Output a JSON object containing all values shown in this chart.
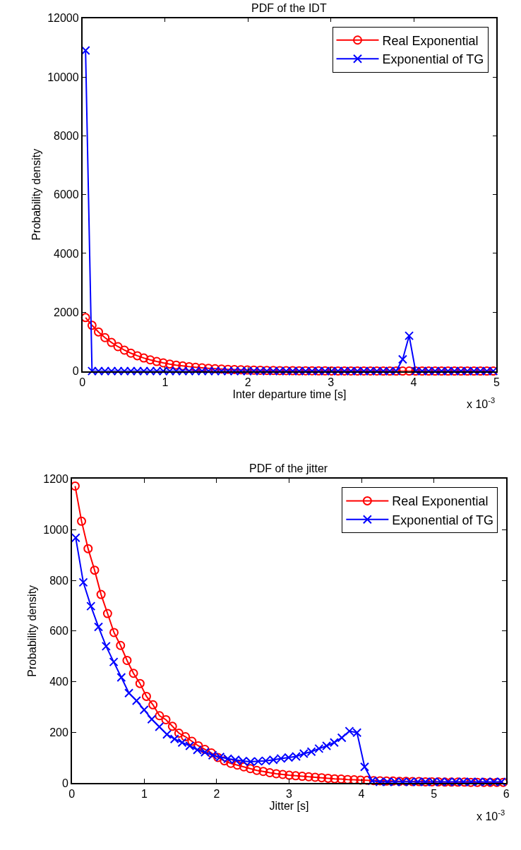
{
  "chart_data": [
    {
      "type": "line",
      "title": "PDF of the IDT",
      "xlabel": "Inter departure time [s]",
      "ylabel": "Probability density",
      "annotations": [
        "x 10$^{-3}$"
      ],
      "x": [
        0.039,
        0.117,
        0.195,
        0.273,
        0.352,
        0.43,
        0.508,
        0.586,
        0.664,
        0.742,
        0.82,
        0.898,
        0.977,
        1.055,
        1.133,
        1.211,
        1.289,
        1.367,
        1.445,
        1.523,
        1.602,
        1.68,
        1.758,
        1.836,
        1.914,
        1.992,
        2.07,
        2.148,
        2.227,
        2.305,
        2.383,
        2.461,
        2.539,
        2.617,
        2.695,
        2.773,
        2.852,
        2.93,
        3.008,
        3.086,
        3.164,
        3.242,
        3.32,
        3.398,
        3.477,
        3.555,
        3.633,
        3.711,
        3.789,
        3.867,
        3.945,
        4.023,
        4.102,
        4.18,
        4.258,
        4.336,
        4.414,
        4.492,
        4.57,
        4.648,
        4.727,
        4.805,
        4.883,
        4.961
      ],
      "series": [
        {
          "name": "Real Exponential",
          "color": "#ff0000",
          "marker": "circle",
          "values": [
            1818,
            1555,
            1330,
            1137,
            972,
            831,
            711,
            608,
            520,
            444,
            380,
            325,
            278,
            238,
            203,
            174,
            149,
            127,
            109,
            93,
            80,
            68,
            58,
            50,
            43,
            36,
            31,
            27,
            23,
            20,
            17,
            14,
            12,
            10,
            9,
            8,
            7,
            6,
            5,
            4,
            4,
            3,
            3,
            2,
            2,
            2,
            1,
            1,
            1,
            1,
            1,
            1,
            1,
            0,
            0,
            0,
            0,
            0,
            0,
            0,
            0,
            0,
            0,
            0
          ]
        },
        {
          "name": "Exponential of TG",
          "color": "#0000ff",
          "marker": "cross",
          "values": [
            10900,
            0,
            0,
            0,
            0,
            0,
            0,
            0,
            0,
            0,
            0,
            0,
            0,
            0,
            0,
            0,
            0,
            0,
            0,
            0,
            0,
            0,
            0,
            0,
            0,
            0,
            0,
            0,
            0,
            0,
            0,
            0,
            0,
            0,
            0,
            0,
            0,
            0,
            0,
            0,
            0,
            0,
            0,
            0,
            0,
            0,
            0,
            0,
            0,
            400,
            1200,
            0,
            0,
            0,
            0,
            0,
            0,
            0,
            0,
            0,
            0,
            0,
            0,
            0
          ]
        }
      ],
      "xlim": [
        0,
        5
      ],
      "xticks": [
        0,
        1,
        2,
        3,
        4,
        5
      ],
      "ylim": [
        0,
        12000
      ],
      "yticks": [
        0,
        2000,
        4000,
        6000,
        8000,
        10000,
        12000
      ],
      "legend": "top right",
      "line_style": "solid"
    },
    {
      "type": "line",
      "title": "PDF of the jitter",
      "xlabel": "Jitter [s]",
      "ylabel": "Probability density",
      "annotations": [
        "x 10$^{-3}$"
      ],
      "series": [
        {
          "name": "Real Exponential",
          "color": "#ff0000",
          "marker": "circle",
          "x": [
            0.045,
            0.134,
            0.224,
            0.314,
            0.403,
            0.493,
            0.582,
            0.672,
            0.762,
            0.851,
            0.941,
            1.03,
            1.12,
            1.21,
            1.299,
            1.389,
            1.478,
            1.568,
            1.658,
            1.747,
            1.837,
            1.927,
            2.016,
            2.106,
            2.195,
            2.285,
            2.375,
            2.464,
            2.554,
            2.643,
            2.733,
            2.823,
            2.912,
            3.002,
            3.091,
            3.181,
            3.271,
            3.36,
            3.45,
            3.539,
            3.629,
            3.719,
            3.808,
            3.898,
            3.987,
            4.077,
            4.167,
            4.256,
            4.346,
            4.435,
            4.525,
            4.615,
            4.704,
            4.794,
            4.883,
            4.973,
            5.063,
            5.152,
            5.242,
            5.331,
            5.421,
            5.51,
            5.6,
            5.69,
            5.779,
            5.869,
            5.958
          ],
          "values": [
            1172,
            1033,
            925,
            840,
            744,
            669,
            594,
            543,
            484,
            433,
            393,
            342,
            309,
            266,
            250,
            224,
            197,
            183,
            165,
            147,
            133,
            119,
            101,
            88,
            78,
            71,
            64,
            57,
            50,
            46,
            41,
            37,
            34,
            31,
            29,
            27,
            25,
            23,
            21,
            19,
            17,
            16,
            14,
            13,
            12,
            11,
            10,
            9,
            8,
            8,
            7,
            7,
            6,
            6,
            5,
            5,
            5,
            4,
            4,
            4,
            4,
            3,
            3,
            3,
            3,
            3,
            3
          ]
        },
        {
          "name": "Exponential of TG",
          "color": "#0000ff",
          "marker": "cross",
          "x": [
            0.053,
            0.158,
            0.263,
            0.368,
            0.473,
            0.578,
            0.683,
            0.788,
            0.893,
            0.998,
            1.103,
            1.208,
            1.313,
            1.418,
            1.523,
            1.628,
            1.733,
            1.838,
            1.943,
            2.048,
            2.153,
            2.258,
            2.363,
            2.468,
            2.573,
            2.678,
            2.783,
            2.888,
            2.993,
            3.098,
            3.203,
            3.308,
            3.413,
            3.518,
            3.623,
            3.728,
            3.833,
            3.938,
            4.043,
            4.148,
            4.253,
            4.358,
            4.463,
            4.568,
            4.673,
            4.778,
            4.883,
            4.988,
            5.093,
            5.198,
            5.303,
            5.408,
            5.513,
            5.618,
            5.723,
            5.828,
            5.933
          ],
          "values": [
            968,
            792,
            698,
            616,
            540,
            478,
            417,
            355,
            325,
            289,
            252,
            222,
            192,
            174,
            160,
            147,
            131,
            122,
            110,
            103,
            96,
            92,
            87,
            84,
            86,
            88,
            92,
            97,
            101,
            105,
            116,
            124,
            136,
            147,
            160,
            179,
            205,
            199,
            64,
            9,
            5,
            5,
            5,
            5,
            5,
            5,
            5,
            5,
            5,
            5,
            5,
            5,
            5,
            5,
            5,
            5,
            5
          ]
        }
      ],
      "xlim": [
        0,
        6
      ],
      "xticks": [
        0,
        1,
        2,
        3,
        4,
        5,
        6
      ],
      "ylim": [
        0,
        1200
      ],
      "yticks": [
        0,
        200,
        400,
        600,
        800,
        1000,
        1200
      ],
      "legend": "top right",
      "line_style": "solid"
    }
  ]
}
